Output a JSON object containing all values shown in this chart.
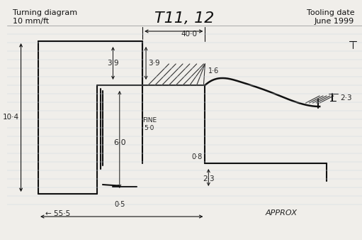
{
  "title_left_line1": "Turning diagram",
  "title_left_line2": "10 mm/ft",
  "title_center": "T11, 12",
  "title_right_line1": "Tooling date",
  "title_right_line2": "June 1999",
  "bg_color": "#f0eeea",
  "line_color": "#111111",
  "annotation_color": "#222222",
  "approx_label": "APPROX",
  "dim_55_5": "← 55·5",
  "dim_40": "40·0",
  "dim_39_left": "3·9",
  "dim_39_right": "3·9",
  "dim_16": "1·6",
  "dim_104": "10·4",
  "dim_60": "6·0",
  "dim_fine50": "FINE\n5·0",
  "dim_08": "0·8",
  "dim_23_bot": "2·3",
  "dim_23_top": "2·3",
  "dim_05": "0·5"
}
